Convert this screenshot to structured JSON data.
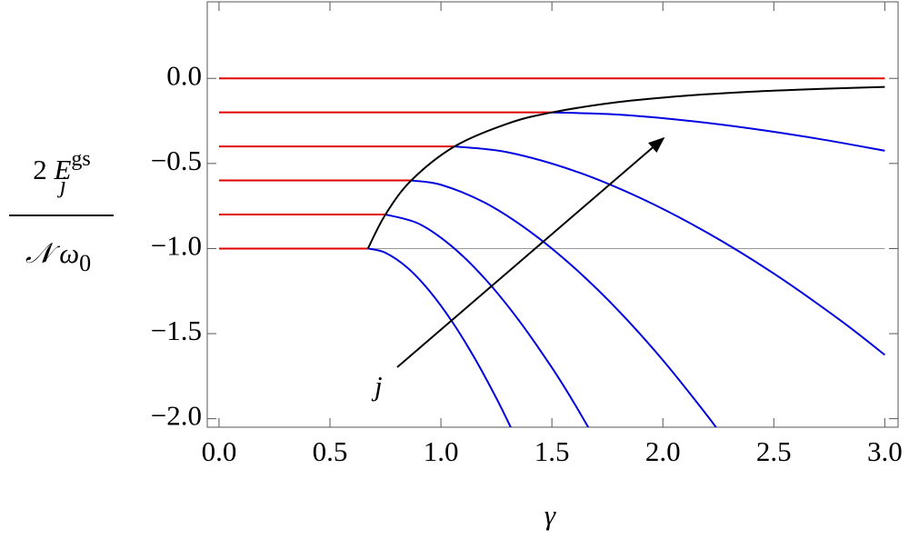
{
  "chart_data": {
    "type": "line",
    "x_label": "γ",
    "y_label": {
      "numerator": "2",
      "symbol": "E",
      "subscript": "j",
      "superscript": "gs",
      "denominator": "𝒩 ω",
      "denominator_subscript": "0"
    },
    "annotation": "j",
    "xlim": [
      -0.053,
      3.06
    ],
    "ylim": [
      -2.05,
      0.45
    ],
    "xticks": [
      {
        "value": 0,
        "label": "0.0"
      },
      {
        "value": 0.5,
        "label": "0.5"
      },
      {
        "value": 1,
        "label": "1.0"
      },
      {
        "value": 1.5,
        "label": "1.5"
      },
      {
        "value": 2,
        "label": "2.0"
      },
      {
        "value": 2.5,
        "label": "2.5"
      },
      {
        "value": 3,
        "label": "3.0"
      }
    ],
    "yticks": [
      {
        "value": 0,
        "label": "0.0"
      },
      {
        "value": -0.5,
        "label": "−0.5"
      },
      {
        "value": -1,
        "label": "−1.0"
      },
      {
        "value": -1.5,
        "label": "−1.5"
      },
      {
        "value": -2,
        "label": "−2.0"
      }
    ],
    "series": [
      {
        "color": "#999999",
        "x": [
          0.671,
          3.0
        ],
        "values": [
          -1.0,
          -1.0
        ]
      },
      {
        "color": "#e00000",
        "x": [
          0,
          3.0
        ],
        "values": [
          0,
          0
        ]
      },
      {
        "color": "#e00000",
        "x": [
          0,
          1.5
        ],
        "values": [
          -0.2,
          -0.2
        ]
      },
      {
        "color": "#e00000",
        "x": [
          0,
          1.061
        ],
        "values": [
          -0.4,
          -0.4
        ]
      },
      {
        "color": "#e00000",
        "x": [
          0,
          0.866
        ],
        "values": [
          -0.6,
          -0.6
        ]
      },
      {
        "color": "#e00000",
        "x": [
          0,
          0.75
        ],
        "values": [
          -0.8,
          -0.8
        ]
      },
      {
        "color": "#e00000",
        "x": [
          0,
          0.671
        ],
        "values": [
          -1.0,
          -1.0
        ]
      },
      {
        "color": "#0000e0",
        "x": [
          0.671,
          0.75,
          0.85,
          0.95,
          1.05,
          1.15,
          1.25,
          1.32
        ],
        "values": [
          -1.0,
          -1.025,
          -1.114,
          -1.252,
          -1.429,
          -1.64,
          -1.88,
          -2.065
        ]
      },
      {
        "color": "#0000e0",
        "x": [
          0.75,
          0.9,
          1.05,
          1.2,
          1.35,
          1.5,
          1.6,
          1.7
        ],
        "values": [
          -0.8,
          -0.854,
          -0.988,
          -1.18,
          -1.42,
          -1.7,
          -1.908,
          -2.133
        ]
      },
      {
        "color": "#0000e0",
        "x": [
          0.866,
          1.0,
          1.2,
          1.4,
          1.6,
          1.8,
          2.0,
          2.2,
          2.3
        ],
        "values": [
          -0.6,
          -0.625,
          -0.732,
          -0.899,
          -1.112,
          -1.365,
          -1.656,
          -1.982,
          -2.159
        ]
      },
      {
        "color": "#0000e0",
        "x": [
          1.061,
          1.3,
          1.6,
          1.9,
          2.2,
          2.5,
          2.8,
          3.0
        ],
        "values": [
          -0.4,
          -0.434,
          -0.543,
          -0.704,
          -0.907,
          -1.147,
          -1.422,
          -1.625
        ]
      },
      {
        "color": "#0000e0",
        "x": [
          1.5,
          1.8,
          2.1,
          2.4,
          2.7,
          3.0
        ],
        "values": [
          -0.2,
          -0.213,
          -0.247,
          -0.295,
          -0.355,
          -0.425
        ]
      },
      {
        "color": "#000000",
        "x": [
          0.671,
          0.75,
          0.866,
          1.061,
          1.3,
          1.5,
          1.8,
          2.1,
          2.4,
          2.7,
          3.0
        ],
        "values": [
          -1.0,
          -0.8,
          -0.6,
          -0.4,
          -0.266,
          -0.2,
          -0.139,
          -0.102,
          -0.078,
          -0.062,
          -0.05
        ]
      }
    ]
  }
}
